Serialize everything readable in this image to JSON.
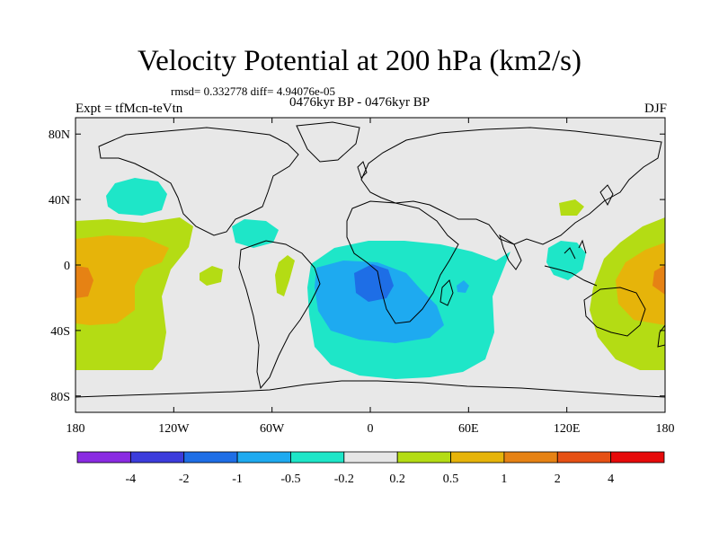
{
  "title": "Velocity Potential at 200 hPa (km2/s)",
  "stats": "rmsd= 0.332778 diff= 4.94076e-05",
  "experiment": "Expt = tfMcn-teVtn",
  "period": "0476kyr BP - 0476kyr BP",
  "season": "DJF",
  "map": {
    "lon_range": [
      -180,
      180
    ],
    "lat_range": [
      -90,
      90
    ],
    "lon_ticks": [
      {
        "value": -180,
        "label": "180"
      },
      {
        "value": -120,
        "label": "120W"
      },
      {
        "value": -60,
        "label": "60W"
      },
      {
        "value": 0,
        "label": "0"
      },
      {
        "value": 60,
        "label": "60E"
      },
      {
        "value": 120,
        "label": "120E"
      },
      {
        "value": 180,
        "label": "180"
      }
    ],
    "lat_ticks": [
      {
        "value": 80,
        "label": "80N"
      },
      {
        "value": 40,
        "label": "40N"
      },
      {
        "value": 0,
        "label": "0"
      },
      {
        "value": -40,
        "label": "40S"
      },
      {
        "value": -80,
        "label": "80S"
      }
    ],
    "background_color": "#e8e8e8"
  },
  "colorbar": {
    "colors": [
      "#8a2be2",
      "#3c3cdc",
      "#1e6ee6",
      "#1eaaf0",
      "#1ee6c8",
      "#e6e6e6",
      "#b4dc14",
      "#e6b40a",
      "#e68214",
      "#e65014",
      "#e60a0a"
    ],
    "labels": [
      "-4",
      "-2",
      "-1",
      "-0.5",
      "-0.2",
      "0.2",
      "0.5",
      "1",
      "2",
      "4"
    ]
  }
}
